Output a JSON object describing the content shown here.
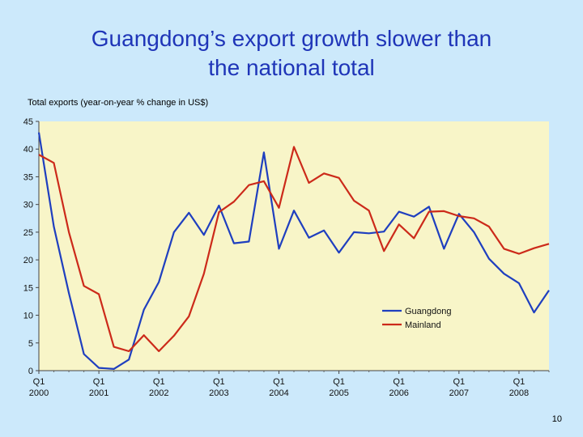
{
  "title_line1": "Guangdong’s export growth slower than",
  "title_line2": "the national total",
  "page_number": "10",
  "chart_data": {
    "type": "line",
    "title": "Total exports (year-on-year % change in US$)",
    "xlabel": "",
    "ylabel": "",
    "ylim": [
      0,
      45
    ],
    "yticks": [
      0,
      5,
      10,
      15,
      20,
      25,
      30,
      35,
      40,
      45
    ],
    "xticks": [
      {
        "q": "Q1",
        "year": "2000",
        "x": 0
      },
      {
        "q": "Q1",
        "year": "2001",
        "x": 4
      },
      {
        "q": "Q1",
        "year": "2002",
        "x": 8
      },
      {
        "q": "Q1",
        "year": "2003",
        "x": 12
      },
      {
        "q": "Q1",
        "year": "2004",
        "x": 16
      },
      {
        "q": "Q1",
        "year": "2005",
        "x": 20
      },
      {
        "q": "Q1",
        "year": "2006",
        "x": 24
      },
      {
        "q": "Q1",
        "year": "2007",
        "x": 28
      },
      {
        "q": "Q1",
        "year": "2008",
        "x": 32
      }
    ],
    "xlim": [
      0,
      34
    ],
    "grid": false,
    "plot_background": "#f8f5c8",
    "legend_position": "lower-right inside plot",
    "series": [
      {
        "name": "Guangdong",
        "color": "#1f3fbf",
        "x": [
          0,
          1,
          2,
          3,
          4,
          5,
          6,
          7,
          8,
          9,
          10,
          11,
          12,
          13,
          14,
          15,
          16,
          17,
          18,
          19,
          20,
          21,
          22,
          23,
          24,
          25,
          26,
          27,
          28,
          29,
          30,
          31,
          32,
          33,
          34
        ],
        "values": [
          43,
          26,
          14,
          3,
          0.5,
          0.3,
          2,
          11,
          16,
          25,
          28.5,
          24.5,
          29.8,
          23,
          23.3,
          39.4,
          22,
          28.9,
          24,
          25.3,
          21.3,
          25,
          24.8,
          25.1,
          28.7,
          27.8,
          29.6,
          22,
          28.3,
          25,
          20.2,
          17.5,
          15.8,
          10.5,
          14.5
        ]
      },
      {
        "name": "Mainland",
        "color": "#cc2a1a",
        "x": [
          0,
          1,
          2,
          3,
          4,
          5,
          6,
          7,
          8,
          9,
          10,
          11,
          12,
          13,
          14,
          15,
          16,
          17,
          18,
          19,
          20,
          21,
          22,
          23,
          24,
          25,
          26,
          27,
          28,
          29,
          30,
          31,
          32,
          33,
          34
        ],
        "values": [
          39,
          37.5,
          25,
          15.3,
          13.8,
          4.3,
          3.5,
          6.4,
          3.5,
          6.3,
          9.8,
          17.5,
          28.6,
          30.5,
          33.5,
          34.2,
          29.4,
          40.4,
          33.9,
          35.6,
          34.8,
          30.7,
          28.9,
          21.6,
          26.4,
          23.9,
          28.7,
          28.8,
          27.9,
          27.5,
          26,
          22,
          21.1,
          22.1,
          22.9
        ]
      }
    ]
  }
}
